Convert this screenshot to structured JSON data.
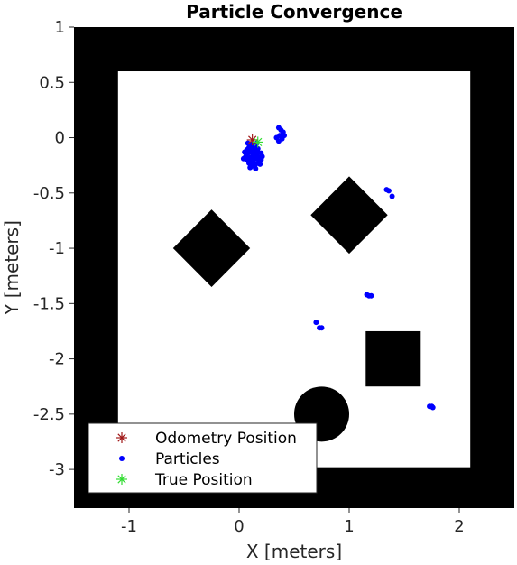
{
  "chart_data": {
    "type": "scatter",
    "title": "Particle Convergence",
    "xlabel": "X [meters]",
    "ylabel": "Y [meters]",
    "xlim": [
      -1.5,
      2.5
    ],
    "ylim": [
      -3.35,
      1.0
    ],
    "xticks": [
      -1,
      0,
      1,
      2
    ],
    "yticks": [
      1,
      0.5,
      0,
      -0.5,
      -1,
      -1.5,
      -2,
      -2.5,
      -3
    ],
    "map": {
      "background": "#000000",
      "free_space_color": "#ffffff",
      "free_space": {
        "x": [
          -1.1,
          2.1
        ],
        "y": [
          -2.98,
          0.6
        ]
      },
      "obstacles": [
        {
          "shape": "diamond",
          "center": [
            -0.25,
            -1.0
          ],
          "half_diagonal": 0.35
        },
        {
          "shape": "diamond",
          "center": [
            1.0,
            -0.7
          ],
          "half_diagonal": 0.35
        },
        {
          "shape": "rectangle",
          "x": [
            1.15,
            1.65
          ],
          "y": [
            -2.25,
            -1.75
          ]
        },
        {
          "shape": "circle",
          "center": [
            0.75,
            -2.5
          ],
          "radius": 0.25
        }
      ]
    },
    "series": [
      {
        "name": "Odometry Position",
        "marker": "asterisk",
        "color": "#a01818",
        "points": [
          [
            0.12,
            -0.02
          ]
        ]
      },
      {
        "name": "Particles",
        "marker": "dot",
        "color": "#0000ff",
        "points": [
          [
            0.06,
            -0.17
          ],
          [
            0.08,
            -0.14
          ],
          [
            0.1,
            -0.12
          ],
          [
            0.12,
            -0.1
          ],
          [
            0.14,
            -0.12
          ],
          [
            0.16,
            -0.15
          ],
          [
            0.18,
            -0.18
          ],
          [
            0.2,
            -0.2
          ],
          [
            0.18,
            -0.22
          ],
          [
            0.15,
            -0.24
          ],
          [
            0.12,
            -0.25
          ],
          [
            0.09,
            -0.23
          ],
          [
            0.07,
            -0.2
          ],
          [
            0.1,
            -0.18
          ],
          [
            0.13,
            -0.17
          ],
          [
            0.16,
            -0.19
          ],
          [
            0.11,
            -0.06
          ],
          [
            0.14,
            -0.07
          ],
          [
            0.09,
            -0.09
          ],
          [
            0.17,
            -0.1
          ],
          [
            0.2,
            -0.14
          ],
          [
            0.05,
            -0.13
          ],
          [
            0.13,
            -0.21
          ],
          [
            0.19,
            -0.24
          ],
          [
            0.1,
            -0.27
          ],
          [
            0.15,
            -0.28
          ],
          [
            0.12,
            -0.14
          ],
          [
            0.16,
            -0.05
          ],
          [
            0.08,
            -0.05
          ],
          [
            0.21,
            -0.17
          ],
          [
            0.04,
            -0.19
          ],
          [
            0.14,
            -0.26
          ],
          [
            0.17,
            -0.13
          ],
          [
            0.11,
            -0.22
          ],
          [
            0.07,
            -0.11
          ],
          [
            0.15,
            -0.09
          ],
          [
            0.36,
            0.09
          ],
          [
            0.38,
            0.07
          ],
          [
            0.4,
            0.05
          ],
          [
            0.37,
            0.02
          ],
          [
            0.39,
            -0.01
          ],
          [
            0.34,
            0.0
          ],
          [
            0.36,
            -0.03
          ],
          [
            0.41,
            0.02
          ],
          [
            1.34,
            -0.47
          ],
          [
            1.36,
            -0.48
          ],
          [
            1.39,
            -0.53
          ],
          [
            1.16,
            -1.42
          ],
          [
            1.18,
            -1.43
          ],
          [
            1.2,
            -1.43
          ],
          [
            0.7,
            -1.67
          ],
          [
            0.73,
            -1.72
          ],
          [
            0.75,
            -1.72
          ],
          [
            1.73,
            -2.43
          ],
          [
            1.75,
            -2.43
          ],
          [
            1.76,
            -2.44
          ]
        ]
      },
      {
        "name": "True Position",
        "marker": "asterisk",
        "color": "#33dd33",
        "points": [
          [
            0.17,
            -0.04
          ]
        ]
      }
    ],
    "legend": {
      "placement": "bottom-left"
    }
  }
}
